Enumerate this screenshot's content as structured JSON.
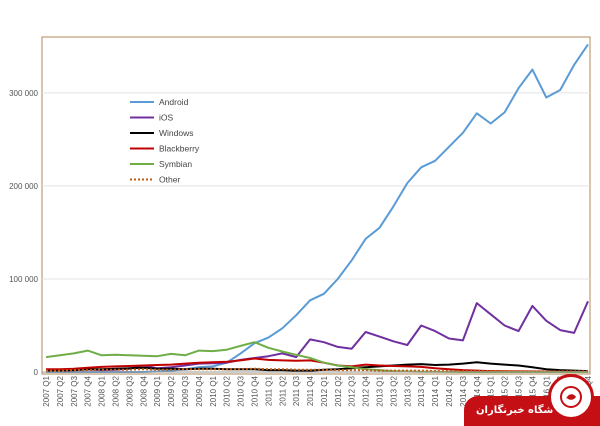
{
  "chart_data": {
    "type": "line",
    "ylim": [
      0,
      360000
    ],
    "yticks": [
      0,
      100000,
      200000,
      300000
    ],
    "ytick_labels": [
      "0",
      "100 000",
      "200 000",
      "300 000"
    ],
    "legend_position": "upper-left",
    "grid": true,
    "categories": [
      "2007 Q1",
      "2007 Q2",
      "2007 Q3",
      "2007 Q4",
      "2008 Q1",
      "2008 Q2",
      "2008 Q3",
      "2008 Q4",
      "2009 Q1",
      "2009 Q2",
      "2009 Q3",
      "2009 Q4",
      "2010 Q1",
      "2010 Q2",
      "2010 Q3",
      "2010 Q4",
      "2011 Q1",
      "2011 Q2",
      "2011 Q3",
      "2011 Q4",
      "2012 Q1",
      "2012 Q2",
      "2012 Q3",
      "2012 Q4",
      "2013 Q1",
      "2013 Q2",
      "2013 Q3",
      "2013 Q4",
      "2014 Q1",
      "2014 Q2",
      "2014 Q3",
      "2014 Q4",
      "2015 Q1",
      "2015 Q2",
      "2015 Q3",
      "2015 Q4",
      "2016 Q1",
      "2016 Q2",
      "2016 Q3",
      "2016 Q4"
    ],
    "series": [
      {
        "name": "Android",
        "color": "#5b9bd5",
        "dash": "",
        "values": [
          0,
          0,
          0,
          0,
          0,
          0,
          0,
          0,
          500,
          1500,
          3000,
          5000,
          6000,
          10000,
          20000,
          31000,
          37000,
          47000,
          61000,
          77000,
          84000,
          100000,
          120000,
          143000,
          155000,
          178000,
          203000,
          220000,
          227000,
          242000,
          257000,
          278000,
          267000,
          279000,
          305000,
          325000,
          295000,
          303000,
          330000,
          352000
        ]
      },
      {
        "name": "iOS",
        "color": "#7030a0",
        "dash": "",
        "values": [
          1000,
          1500,
          2000,
          3000,
          2000,
          2500,
          3500,
          7000,
          4000,
          5000,
          7000,
          9000,
          9500,
          10000,
          13000,
          15000,
          17000,
          20000,
          16000,
          35000,
          32000,
          27000,
          25000,
          43000,
          38000,
          33000,
          29000,
          50000,
          44000,
          36000,
          34000,
          74000,
          62000,
          50000,
          44000,
          71000,
          55000,
          45000,
          42000,
          76000
        ]
      },
      {
        "name": "Windows",
        "color": "#000000",
        "dash": "",
        "values": [
          1000,
          1500,
          2000,
          3000,
          3000,
          3500,
          4000,
          4500,
          3500,
          3500,
          3000,
          3500,
          3500,
          3000,
          3000,
          3000,
          2000,
          2000,
          1500,
          1500,
          2500,
          3000,
          4000,
          5000,
          6000,
          7000,
          8000,
          8500,
          7500,
          8000,
          9000,
          10500,
          9000,
          8000,
          7000,
          5000,
          3000,
          2000,
          1500,
          1000
        ]
      },
      {
        "name": "Blackberry",
        "color": "#c00000",
        "dash": "",
        "values": [
          3000,
          3000,
          3500,
          4500,
          5500,
          6000,
          6500,
          7000,
          7500,
          8000,
          9000,
          10000,
          10500,
          11000,
          12500,
          14500,
          13000,
          12500,
          12000,
          12500,
          10000,
          7000,
          6000,
          8000,
          7000,
          6500,
          6000,
          5500,
          4000,
          3000,
          2000,
          1500,
          1000,
          800,
          600,
          500,
          400,
          300,
          200,
          100
        ]
      },
      {
        "name": "Symbian",
        "color": "#70ad47",
        "dash": "",
        "values": [
          16000,
          18000,
          20000,
          23000,
          18000,
          18500,
          18000,
          17500,
          17000,
          19500,
          18000,
          23000,
          22500,
          24000,
          28000,
          32000,
          26000,
          22000,
          18500,
          15000,
          10000,
          7000,
          5000,
          3000,
          2000,
          1000,
          500,
          300,
          200,
          100,
          0,
          0,
          0,
          0,
          0,
          0,
          0,
          0,
          0,
          0
        ]
      },
      {
        "name": "Other",
        "color": "#c55a11",
        "dash": "2,2",
        "values": [
          1500,
          1500,
          2000,
          2000,
          2500,
          2500,
          2500,
          3000,
          2500,
          2500,
          3000,
          3000,
          3000,
          3000,
          3000,
          3500,
          3000,
          3000,
          2500,
          2500,
          2500,
          2000,
          2000,
          2000,
          1500,
          1500,
          1500,
          1500,
          1000,
          1000,
          1000,
          1000,
          1000,
          1000,
          800,
          800,
          800,
          600,
          600,
          600
        ]
      }
    ]
  },
  "watermark": {
    "text": "باشگاه خبرنگاران",
    "color": "#c41015"
  }
}
